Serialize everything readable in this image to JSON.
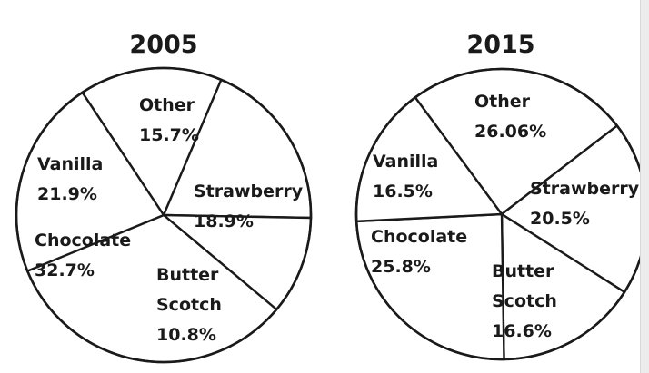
{
  "colors": {
    "ink": "#1a1a1a",
    "fill": "#ffffff"
  },
  "chart_data": [
    {
      "type": "pie",
      "title": "2005",
      "slices": [
        {
          "name": "Other",
          "value": 15.7,
          "label": "15.7%"
        },
        {
          "name": "Strawberry",
          "value": 18.9,
          "label": "18.9%"
        },
        {
          "name": "Butter Scotch",
          "label_lines": [
            "Butter",
            "Scotch"
          ],
          "value": 10.8,
          "label": "10.8%"
        },
        {
          "name": "Chocolate",
          "value": 32.7,
          "label": "32.7%"
        },
        {
          "name": "Vanilla",
          "value": 21.9,
          "label": "21.9%"
        }
      ]
    },
    {
      "type": "pie",
      "title": "2015",
      "slices": [
        {
          "name": "Other",
          "value": 26.06,
          "label": "26.06%"
        },
        {
          "name": "Strawberry",
          "value": 20.5,
          "label": "20.5%"
        },
        {
          "name": "Butter Scotch",
          "label_lines": [
            "Butter",
            "Scotch"
          ],
          "value": 16.6,
          "label": "16.6%"
        },
        {
          "name": "Chocolate",
          "value": 25.8,
          "label": "25.8%"
        },
        {
          "name": "Vanilla",
          "value": 16.5,
          "label": "16.5%"
        }
      ]
    }
  ]
}
